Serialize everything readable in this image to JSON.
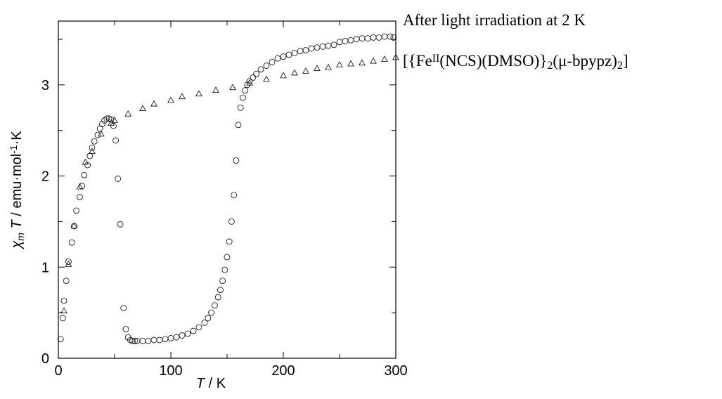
{
  "chart_data": {
    "type": "scatter",
    "x_label": {
      "parts": [
        {
          "text": "T",
          "style": "italic"
        },
        {
          "text": " / K"
        }
      ]
    },
    "y_label": {
      "parts": [
        {
          "text": "χ",
          "style": "italic"
        },
        {
          "text": "m",
          "style": "italic sub"
        },
        {
          "text": " "
        },
        {
          "text": "T",
          "style": "italic"
        },
        {
          "text": " / emu·mol"
        },
        {
          "text": "-1",
          "style": "sup"
        },
        {
          "text": "·K"
        }
      ]
    },
    "annotations": [
      {
        "parts": [
          {
            "text": "After light irradiation at 2 K"
          }
        ]
      },
      {
        "parts": [
          {
            "text": "[{Fe"
          },
          {
            "text": "II",
            "style": "sup"
          },
          {
            "text": "(NCS)(DMSO)}"
          },
          {
            "text": "2",
            "style": "sub"
          },
          {
            "text": "(μ-bpypz)"
          },
          {
            "text": "2",
            "style": "sub"
          },
          {
            "text": "]"
          }
        ]
      }
    ],
    "xlim": [
      0,
      300
    ],
    "xticks": [
      0,
      100,
      200,
      300
    ],
    "x_minor_ticks": [
      50,
      150,
      250
    ],
    "ylim": [
      0,
      3.7
    ],
    "yticks": [
      0,
      1,
      2,
      3
    ],
    "y_minor_ticks": [
      0.5,
      1.5,
      2.5,
      3.5
    ],
    "series": [
      {
        "marker": "circle",
        "color": "#000000",
        "x": [
          2,
          4,
          5,
          7,
          9,
          12,
          14,
          16,
          19,
          21,
          23,
          26,
          28,
          30,
          32,
          35,
          37,
          39,
          41,
          43,
          45,
          47,
          49,
          51,
          53,
          55,
          58,
          60,
          62,
          64,
          66,
          68,
          70,
          75,
          80,
          85,
          90,
          95,
          100,
          105,
          110,
          115,
          120,
          125,
          130,
          133,
          136,
          139,
          142,
          144,
          146,
          148,
          150,
          152,
          154,
          156,
          158,
          160,
          162,
          164,
          166,
          168,
          170,
          173,
          176,
          180,
          185,
          190,
          195,
          200,
          205,
          210,
          215,
          220,
          225,
          230,
          235,
          240,
          245,
          250,
          255,
          260,
          265,
          270,
          275,
          280,
          285,
          290,
          295,
          298
        ],
        "values": [
          0.21,
          0.44,
          0.63,
          0.85,
          1.06,
          1.27,
          1.45,
          1.62,
          1.77,
          1.89,
          2.01,
          2.12,
          2.22,
          2.31,
          2.38,
          2.45,
          2.52,
          2.57,
          2.61,
          2.63,
          2.63,
          2.62,
          2.55,
          2.39,
          1.97,
          1.47,
          0.55,
          0.32,
          0.23,
          0.2,
          0.19,
          0.19,
          0.19,
          0.19,
          0.19,
          0.2,
          0.2,
          0.21,
          0.22,
          0.23,
          0.25,
          0.27,
          0.3,
          0.34,
          0.39,
          0.44,
          0.5,
          0.58,
          0.67,
          0.75,
          0.85,
          0.97,
          1.11,
          1.28,
          1.5,
          1.79,
          2.17,
          2.56,
          2.75,
          2.86,
          2.94,
          3.0,
          3.04,
          3.08,
          3.12,
          3.17,
          3.21,
          3.25,
          3.29,
          3.31,
          3.33,
          3.35,
          3.37,
          3.38,
          3.4,
          3.41,
          3.42,
          3.43,
          3.44,
          3.47,
          3.48,
          3.49,
          3.5,
          3.51,
          3.51,
          3.52,
          3.52,
          3.53,
          3.53,
          3.52
        ]
      },
      {
        "marker": "triangle",
        "color": "#000000",
        "x": [
          5,
          9,
          14,
          19,
          24,
          30,
          38,
          47,
          50,
          62,
          75,
          85,
          100,
          110,
          125,
          140,
          155,
          170,
          185,
          200,
          210,
          220,
          230,
          240,
          250,
          260,
          270,
          280,
          290,
          300
        ],
        "values": [
          0.52,
          1.03,
          1.45,
          1.88,
          2.15,
          2.27,
          2.46,
          2.58,
          2.61,
          2.68,
          2.74,
          2.79,
          2.83,
          2.87,
          2.9,
          2.94,
          2.97,
          3.02,
          3.06,
          3.1,
          3.13,
          3.15,
          3.18,
          3.19,
          3.22,
          3.23,
          3.24,
          3.26,
          3.28,
          3.3
        ]
      }
    ]
  }
}
